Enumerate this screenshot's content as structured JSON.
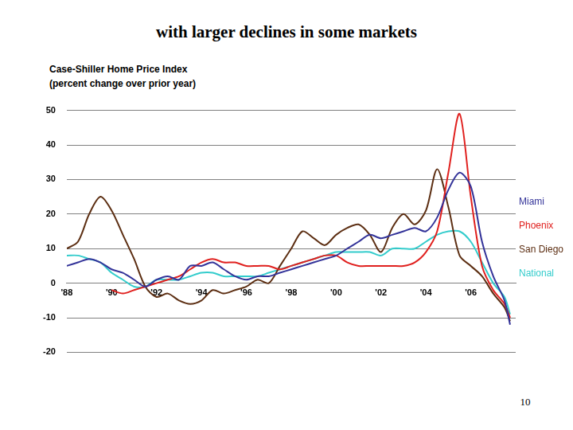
{
  "chart_data": {
    "type": "line",
    "title": "with larger declines in some markets",
    "subtitle": [
      "Case-Shiller Home Price Index",
      "(percent change over prior year)"
    ],
    "footer": "10",
    "x": [
      1988,
      1988.5,
      1989,
      1989.5,
      1990,
      1990.5,
      1991,
      1991.5,
      1992,
      1992.5,
      1993,
      1993.5,
      1994,
      1994.5,
      1995,
      1995.5,
      1996,
      1996.5,
      1997,
      1997.5,
      1998,
      1998.5,
      1999,
      1999.5,
      2000,
      2000.5,
      2001,
      2001.5,
      2002,
      2002.5,
      2003,
      2003.5,
      2004,
      2004.5,
      2005,
      2005.5,
      2006,
      2006.5,
      2007,
      2007.5,
      2007.75
    ],
    "series": [
      {
        "name": "Miami",
        "color": "#333399",
        "values": [
          5,
          6,
          7,
          6,
          4,
          3,
          1,
          -1,
          1,
          2,
          1,
          5,
          5,
          6,
          4,
          2,
          1,
          2,
          2,
          3,
          4,
          5,
          6,
          7,
          8,
          10,
          12,
          14,
          13,
          14,
          15,
          16,
          15,
          19,
          27,
          32,
          28,
          12,
          2,
          -5,
          -12
        ]
      },
      {
        "name": "Phoenix",
        "color": "#e0201e",
        "values": [
          null,
          null,
          null,
          null,
          -2,
          -3,
          -2,
          -1,
          0,
          1,
          2,
          4,
          6,
          7,
          6,
          6,
          5,
          5,
          5,
          4,
          5,
          6,
          7,
          8,
          8,
          6,
          5,
          5,
          5,
          5,
          5,
          6,
          9,
          15,
          32,
          49,
          25,
          5,
          -2,
          -6,
          -10
        ]
      },
      {
        "name": "San Diego",
        "color": "#5c2e12",
        "values": [
          10,
          12,
          20,
          25,
          21,
          14,
          7,
          -1,
          -4,
          -3,
          -5,
          -6,
          -5,
          -2,
          -3,
          -2,
          -1,
          1,
          0,
          5,
          10,
          15,
          13,
          11,
          14,
          16,
          17,
          14,
          9,
          16,
          20,
          17,
          21,
          33,
          22,
          8,
          5,
          2,
          -3,
          -7,
          -11
        ]
      },
      {
        "name": "National",
        "color": "#33cccc",
        "values": [
          8,
          8,
          7,
          6,
          3,
          1,
          -1,
          -1,
          1,
          1,
          1,
          2,
          3,
          3,
          2,
          2,
          2,
          2,
          3,
          4,
          5,
          6,
          7,
          8,
          9,
          9,
          9,
          9,
          8,
          10,
          10,
          10,
          12,
          14,
          15,
          15,
          12,
          6,
          0,
          -4,
          -9
        ]
      }
    ],
    "xlim": [
      1988,
      2008
    ],
    "xticks": [
      {
        "value": 1988,
        "label": "'88"
      },
      {
        "value": 1990,
        "label": "'90"
      },
      {
        "value": 1992,
        "label": "'92"
      },
      {
        "value": 1994,
        "label": "'94"
      },
      {
        "value": 1996,
        "label": "'96"
      },
      {
        "value": 1998,
        "label": "'98"
      },
      {
        "value": 2000,
        "label": "'00"
      },
      {
        "value": 2002,
        "label": "'02"
      },
      {
        "value": 2004,
        "label": "'04"
      },
      {
        "value": 2006,
        "label": "'06"
      }
    ],
    "ylim": [
      -20,
      50
    ],
    "yticks": [
      -20,
      -10,
      0,
      10,
      20,
      30,
      40,
      50
    ],
    "grid": true,
    "legend": "right"
  }
}
